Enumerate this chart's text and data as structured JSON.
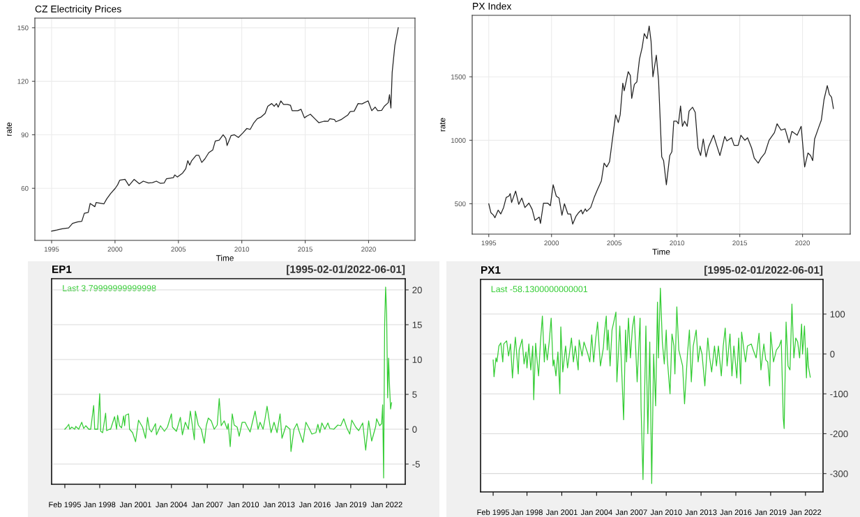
{
  "chart_data": [
    {
      "type": "line",
      "title": "CZ Electricity Prices",
      "xlabel": "Time",
      "ylabel": "rate",
      "grid": true,
      "xlim": [
        1993.68,
        2023.66
      ],
      "xticks": [
        1995,
        2000,
        2005,
        2010,
        2015,
        2020
      ],
      "ylim": [
        30.8,
        155.4
      ],
      "yticks": [
        60,
        90,
        120,
        150
      ],
      "series": [
        {
          "color": "#222222",
          "x": [
            1995.0,
            1995.41,
            1995.83,
            1996.34,
            1996.65,
            1997.07,
            1997.38,
            1997.58,
            1997.89,
            1998.04,
            1998.41,
            1998.51,
            1999.13,
            1999.34,
            1999.65,
            2000.02,
            2000.21,
            2000.37,
            2000.79,
            2001.1,
            2001.51,
            2001.92,
            2002.23,
            2002.64,
            2002.95,
            2003.26,
            2003.57,
            2003.88,
            2004.05,
            2004.61,
            2004.71,
            2004.92,
            2005.33,
            2005.58,
            2005.74,
            2005.89,
            2006.05,
            2006.4,
            2006.61,
            2006.84,
            2007.09,
            2007.4,
            2007.71,
            2007.91,
            2008.22,
            2008.53,
            2008.74,
            2008.84,
            2009.15,
            2009.42,
            2009.73,
            2010.08,
            2010.39,
            2010.66,
            2010.95,
            2011.22,
            2011.53,
            2011.84,
            2012.05,
            2012.36,
            2012.56,
            2012.73,
            2012.87,
            2013.08,
            2013.29,
            2013.6,
            2013.84,
            2013.97,
            2014.42,
            2014.67,
            2014.94,
            2015.14,
            2015.41,
            2015.76,
            2016.07,
            2016.49,
            2016.8,
            2016.94,
            2017.31,
            2017.42,
            2017.83,
            2018.14,
            2018.35,
            2018.55,
            2018.86,
            2019.17,
            2019.48,
            2019.96,
            2020.25,
            2020.52,
            2020.72,
            2021.03,
            2021.24,
            2021.55,
            2021.65,
            2021.76,
            2021.86,
            2022.07,
            2022.34
          ],
          "values": [
            36,
            36.6,
            37.3,
            37.8,
            40.3,
            41.2,
            41.5,
            46,
            46.5,
            51.5,
            49.7,
            52,
            51.3,
            54,
            57,
            60,
            62,
            64.5,
            65,
            61.5,
            65,
            62.5,
            64,
            63,
            63.2,
            64,
            62.8,
            63,
            65.3,
            66,
            67.5,
            66.3,
            68.5,
            71,
            75.5,
            73,
            75.5,
            78.5,
            78.5,
            74.5,
            76.5,
            80,
            81.5,
            86.5,
            87,
            90,
            88,
            84,
            89.5,
            90,
            88.5,
            91,
            93.5,
            93,
            96.7,
            99,
            100,
            102,
            106,
            107.5,
            106,
            107.5,
            105.5,
            109,
            107,
            107,
            106.5,
            103.5,
            103.5,
            104.3,
            99.5,
            100.5,
            101.5,
            99,
            96.8,
            97.6,
            97.5,
            99,
            98.5,
            97.3,
            98.5,
            100,
            101,
            103,
            103.2,
            107.5,
            107.3,
            109,
            103.5,
            105.5,
            103.5,
            103.7,
            106,
            108,
            112.5,
            105,
            125,
            140,
            150
          ]
        }
      ]
    },
    {
      "type": "line",
      "title": "PX Index",
      "xlabel": "Time",
      "ylabel": "rate",
      "grid": true,
      "xlim": [
        1993.68,
        2023.8
      ],
      "xticks": [
        1995,
        2000,
        2005,
        2010,
        2015,
        2020
      ],
      "ylim": [
        261,
        1984
      ],
      "yticks": [
        500,
        1000,
        1500
      ],
      "series": [
        {
          "color": "#222222",
          "x": [
            1995.0,
            1995.17,
            1995.38,
            1995.49,
            1995.75,
            1995.96,
            1996.18,
            1996.39,
            1996.6,
            1996.71,
            1996.82,
            1997.14,
            1997.39,
            1997.63,
            1997.88,
            1998.2,
            1998.46,
            1998.68,
            1999.02,
            1999.12,
            1999.36,
            1999.7,
            1999.91,
            2000.13,
            2000.38,
            2000.6,
            2000.83,
            2001.03,
            2001.3,
            2001.52,
            2001.69,
            2001.94,
            2002.16,
            2002.37,
            2002.48,
            2002.69,
            2002.8,
            2003.12,
            2003.4,
            2003.65,
            2003.97,
            2004.19,
            2004.4,
            2004.62,
            2004.83,
            2005.11,
            2005.32,
            2005.47,
            2005.68,
            2005.79,
            2006.11,
            2006.28,
            2006.39,
            2006.6,
            2006.8,
            2007.01,
            2007.22,
            2007.39,
            2007.61,
            2007.78,
            2007.93,
            2008.08,
            2008.35,
            2008.53,
            2008.78,
            2008.93,
            2009.15,
            2009.42,
            2009.59,
            2009.74,
            2009.96,
            2010.11,
            2010.28,
            2010.43,
            2010.6,
            2010.81,
            2010.96,
            2011.24,
            2011.45,
            2011.67,
            2011.88,
            2012.09,
            2012.31,
            2012.52,
            2012.91,
            2013.16,
            2013.42,
            2013.8,
            2013.97,
            2014.34,
            2014.55,
            2014.87,
            2015.09,
            2015.41,
            2015.62,
            2015.94,
            2016.15,
            2016.47,
            2016.69,
            2017.01,
            2017.33,
            2017.76,
            2017.97,
            2018.29,
            2018.61,
            2018.93,
            2019.15,
            2019.57,
            2019.89,
            2020.17,
            2020.43,
            2020.64,
            2020.81,
            2020.96,
            2021.28,
            2021.5,
            2021.71,
            2021.97,
            2022.14,
            2022.31,
            2022.46
          ],
          "values": [
            500,
            430,
            410,
            390,
            450,
            420,
            470,
            550,
            560,
            580,
            510,
            600,
            495,
            545,
            470,
            505,
            455,
            370,
            395,
            345,
            505,
            505,
            485,
            650,
            560,
            545,
            410,
            500,
            420,
            420,
            340,
            400,
            430,
            450,
            420,
            460,
            440,
            470,
            550,
            610,
            680,
            820,
            790,
            830,
            990,
            1200,
            1140,
            1200,
            1450,
            1390,
            1540,
            1510,
            1330,
            1440,
            1460,
            1640,
            1730,
            1840,
            1800,
            1900,
            1780,
            1500,
            1670,
            1470,
            870,
            840,
            650,
            880,
            910,
            1150,
            1150,
            1130,
            1270,
            1110,
            1150,
            1110,
            1230,
            1260,
            1220,
            940,
            880,
            1010,
            870,
            950,
            1040,
            960,
            880,
            1030,
            995,
            1020,
            960,
            960,
            1040,
            1000,
            1020,
            940,
            860,
            820,
            860,
            900,
            1000,
            1060,
            1130,
            1080,
            1090,
            980,
            1070,
            1040,
            1110,
            790,
            900,
            880,
            840,
            1010,
            1100,
            1160,
            1320,
            1430,
            1360,
            1340,
            1250
          ]
        }
      ]
    },
    {
      "type": "line",
      "title": "EP1",
      "subtitle": "[1995-02-01/2022-06-01]",
      "annotations": [
        "Last 3.79999999999998"
      ],
      "grid": "y",
      "xlim": [
        "1993-12-24",
        "2023-07-23"
      ],
      "xticks": [
        {
          "value": "1995-02-01",
          "label": "Feb 1995"
        },
        {
          "value": "1998-01-01",
          "label": "Jan 1998"
        },
        {
          "value": "2001-01-01",
          "label": "Jan 2001"
        },
        {
          "value": "2004-01-01",
          "label": "Jan 2004"
        },
        {
          "value": "2007-01-01",
          "label": "Jan 2007"
        },
        {
          "value": "2010-01-01",
          "label": "Jan 2010"
        },
        {
          "value": "2013-01-01",
          "label": "Jan 2013"
        },
        {
          "value": "2016-01-01",
          "label": "Jan 2016"
        },
        {
          "value": "2019-01-01",
          "label": "Jan 2019"
        },
        {
          "value": "2022-01-01",
          "label": "Jan 2022"
        }
      ],
      "y2lim": [
        -7.9,
        21.6
      ],
      "y2ticks": [
        -5,
        0,
        5,
        10,
        15,
        20
      ],
      "series": [
        {
          "color": "#33cc33",
          "axis": "y2",
          "x": [
            "1995-02",
            "1995-04",
            "1995-06",
            "1995-07",
            "1995-09",
            "1995-12",
            "1996-01",
            "1996-04",
            "1996-07",
            "1996-09",
            "1996-11",
            "1997-02",
            "1997-04",
            "1997-07",
            "1997-08",
            "1997-11",
            "1998-01",
            "1998-02",
            "1998-04",
            "1998-07",
            "1998-08",
            "1998-11",
            "1998-12",
            "1999-04",
            "1999-06",
            "1999-07",
            "1999-09",
            "1999-11",
            "2000-01",
            "2000-02",
            "2000-03",
            "2000-06",
            "2000-07",
            "2000-10",
            "2001-01",
            "2001-04",
            "2001-08",
            "2001-11",
            "2002-01",
            "2002-03",
            "2002-05",
            "2002-09",
            "2002-10",
            "2003-02",
            "2003-06",
            "2003-09",
            "2004-01",
            "2004-02",
            "2004-06",
            "2004-10",
            "2004-12",
            "2005-03",
            "2005-06",
            "2005-08",
            "2005-12",
            "2006-01",
            "2006-04",
            "2006-07",
            "2006-10",
            "2006-12",
            "2007-02",
            "2007-05",
            "2007-08",
            "2007-11",
            "2008-01",
            "2008-03",
            "2008-06",
            "2008-09",
            "2008-10",
            "2008-12",
            "2009-02",
            "2009-04",
            "2009-07",
            "2009-09",
            "2009-12",
            "2010-03",
            "2010-05",
            "2010-08",
            "2011-01",
            "2011-04",
            "2011-06",
            "2011-09",
            "2011-11",
            "2012-01",
            "2012-05",
            "2012-08",
            "2012-11",
            "2013-02",
            "2013-04",
            "2013-08",
            "2013-12",
            "2014-01",
            "2014-04",
            "2014-07",
            "2014-09",
            "2015-01",
            "2015-04",
            "2015-07",
            "2015-10",
            "2016-02",
            "2016-04",
            "2016-06",
            "2016-08",
            "2016-11",
            "2017-02",
            "2017-04",
            "2017-08",
            "2017-12",
            "2018-03",
            "2018-06",
            "2018-09",
            "2018-12",
            "2019-02",
            "2019-06",
            "2019-09",
            "2020-01",
            "2020-04",
            "2020-07",
            "2020-10",
            "2021-02",
            "2021-03",
            "2021-06",
            "2021-08",
            "2021-09",
            "2021-10",
            "2021-11",
            "2021-12",
            "2022-01",
            "2022-02",
            "2022-03",
            "2022-04",
            "2022-05",
            "2022-06"
          ],
          "values": [
            0,
            0.3,
            0.7,
            0,
            0.3,
            0,
            0.4,
            0,
            1,
            0.1,
            0.5,
            0,
            0,
            3.4,
            0,
            0,
            5.1,
            -0.3,
            -0.5,
            2.3,
            -0.2,
            0,
            0,
            1.8,
            0,
            2,
            0.5,
            0.2,
            1.9,
            0.5,
            2,
            2.2,
            0,
            -0.5,
            -1.8,
            1.3,
            0.3,
            -1.3,
            1.7,
            0,
            -0.4,
            0.8,
            -0.8,
            0.5,
            -0.3,
            0.3,
            2.2,
            0.3,
            -0.3,
            1.7,
            -0.8,
            1,
            0,
            2.6,
            -1.5,
            2.6,
            0.6,
            0,
            -2,
            0.5,
            1.6,
            1.2,
            0,
            0.6,
            4.4,
            0.5,
            1.2,
            0,
            0.8,
            -2.5,
            2.2,
            0.6,
            0.3,
            -1,
            1,
            1,
            0.4,
            -0.4,
            2.6,
            0,
            1,
            0,
            1.5,
            3.3,
            -0.5,
            1,
            -0.5,
            2.2,
            -1.3,
            0.5,
            0,
            -3.2,
            0,
            0.8,
            -0.2,
            -1.9,
            1,
            0.2,
            -0.7,
            -0.5,
            0.7,
            -0.5,
            0.9,
            0,
            0.9,
            0.1,
            0,
            0.6,
            0.5,
            1.5,
            0.2,
            -0.7,
            1.3,
            0.3,
            -0.2,
            0.9,
            -3,
            1.2,
            -1.7,
            0.4,
            1.5,
            0.5,
            0.8,
            3.5,
            -7,
            15,
            20.4,
            16.5,
            4.5,
            10.2,
            6,
            2.9,
            3.8
          ]
        }
      ]
    },
    {
      "type": "line",
      "title": "PX1",
      "subtitle": "[1995-02-01/2022-06-01]",
      "annotations": [
        "Last -58.1300000000001"
      ],
      "grid": "y",
      "xlim": [
        "1994-01-01",
        "2023-07-08"
      ],
      "xticks": [
        {
          "value": "1995-02-01",
          "label": "Feb 1995"
        },
        {
          "value": "1998-01-01",
          "label": "Jan 1998"
        },
        {
          "value": "2001-01-01",
          "label": "Jan 2001"
        },
        {
          "value": "2004-01-01",
          "label": "Jan 2004"
        },
        {
          "value": "2007-01-01",
          "label": "Jan 2007"
        },
        {
          "value": "2010-01-01",
          "label": "Jan 2010"
        },
        {
          "value": "2013-01-01",
          "label": "Jan 2013"
        },
        {
          "value": "2016-01-01",
          "label": "Jan 2016"
        },
        {
          "value": "2019-01-01",
          "label": "Jan 2019"
        },
        {
          "value": "2022-01-01",
          "label": "Jan 2022"
        }
      ],
      "y2lim": [
        -346,
        187
      ],
      "y2ticks": [
        -300,
        -200,
        -100,
        0,
        100
      ],
      "series": [
        {
          "color": "#33cc33",
          "axis": "y2",
          "x": [
            "1995-02",
            "1995-03",
            "1995-05",
            "1995-06",
            "1995-08",
            "1995-10",
            "1995-12",
            "1996-01",
            "1996-04",
            "1996-06",
            "1996-08",
            "1996-10",
            "1996-12",
            "1997-01",
            "1997-04",
            "1997-05",
            "1997-08",
            "1997-10",
            "1997-12",
            "1998-01",
            "1998-03",
            "1998-05",
            "1998-07",
            "1998-08",
            "1998-10",
            "1998-11",
            "1999-01",
            "1999-03",
            "1999-05",
            "1999-07",
            "1999-08",
            "1999-10",
            "1999-12",
            "2000-02",
            "2000-04",
            "2000-05",
            "2000-07",
            "2000-09",
            "2000-11",
            "2000-12",
            "2001-02",
            "2001-05",
            "2001-07",
            "2001-11",
            "2002-01",
            "2002-03",
            "2002-06",
            "2002-07",
            "2002-10",
            "2002-12",
            "2003-04",
            "2003-06",
            "2003-08",
            "2003-10",
            "2003-12",
            "2004-02",
            "2004-04",
            "2004-05",
            "2004-08",
            "2004-09",
            "2004-11",
            "2004-12",
            "2005-01",
            "2005-03",
            "2005-05",
            "2005-09",
            "2005-10",
            "2006-01",
            "2006-03",
            "2006-05",
            "2006-07",
            "2006-08",
            "2006-10",
            "2006-12",
            "2007-02",
            "2007-04",
            "2007-07",
            "2007-10",
            "2007-11",
            "2008-01",
            "2008-03",
            "2008-04",
            "2008-06",
            "2008-08",
            "2008-10",
            "2008-12",
            "2009-02",
            "2009-04",
            "2009-05",
            "2009-07",
            "2009-09",
            "2009-11",
            "2010-01",
            "2010-02",
            "2010-05",
            "2010-07",
            "2010-09",
            "2010-10",
            "2010-12",
            "2011-02",
            "2011-06",
            "2011-08",
            "2011-11",
            "2012-01",
            "2012-03",
            "2012-05",
            "2012-08",
            "2012-10",
            "2012-12",
            "2013-02",
            "2013-05",
            "2013-08",
            "2013-10",
            "2013-12",
            "2014-03",
            "2014-05",
            "2014-07",
            "2014-10",
            "2014-12",
            "2015-02",
            "2015-04",
            "2015-07",
            "2015-09",
            "2015-11",
            "2016-02",
            "2016-04",
            "2016-06",
            "2016-07",
            "2016-11",
            "2017-01",
            "2017-05",
            "2017-07",
            "2017-10",
            "2018-01",
            "2018-03",
            "2018-06",
            "2018-08",
            "2018-10",
            "2018-12",
            "2019-01",
            "2019-04",
            "2019-07",
            "2019-10",
            "2019-12",
            "2020-02",
            "2020-03",
            "2020-05",
            "2020-07",
            "2020-09",
            "2020-11",
            "2021-01",
            "2021-03",
            "2021-05",
            "2021-07",
            "2021-09",
            "2021-10",
            "2021-12",
            "2022-02",
            "2022-03",
            "2022-04",
            "2022-06"
          ],
          "values": [
            -15,
            -57,
            -10,
            -20,
            20,
            28,
            -20,
            25,
            33,
            -5,
            25,
            -60,
            15,
            42,
            -50,
            10,
            37,
            -25,
            5,
            -35,
            25,
            -40,
            20,
            -115,
            27,
            -5,
            -55,
            30,
            95,
            -20,
            25,
            -15,
            30,
            90,
            -30,
            -15,
            -55,
            5,
            -100,
            68,
            -45,
            20,
            -35,
            40,
            -20,
            20,
            -40,
            35,
            -5,
            30,
            0,
            -20,
            48,
            -20,
            35,
            80,
            5,
            -30,
            15,
            50,
            95,
            10,
            60,
            -30,
            60,
            105,
            -70,
            70,
            -40,
            -165,
            60,
            -20,
            90,
            -10,
            65,
            95,
            -70,
            90,
            -135,
            -315,
            -60,
            70,
            -200,
            30,
            -325,
            0,
            -130,
            130,
            -10,
            165,
            30,
            -25,
            60,
            -10,
            -100,
            50,
            20,
            -50,
            118,
            10,
            -30,
            -125,
            0,
            60,
            -70,
            20,
            60,
            -20,
            20,
            0,
            -80,
            40,
            -10,
            -45,
            20,
            -30,
            20,
            -55,
            20,
            65,
            -30,
            50,
            -55,
            20,
            -60,
            40,
            -75,
            55,
            -20,
            20,
            25,
            10,
            -10,
            52,
            -40,
            25,
            -15,
            -20,
            -80,
            55,
            -20,
            10,
            20,
            35,
            -160,
            -187,
            80,
            -30,
            -40,
            125,
            -10,
            40,
            30,
            -10,
            75,
            0,
            70,
            -60,
            15,
            -30,
            -58
          ]
        }
      ]
    }
  ]
}
